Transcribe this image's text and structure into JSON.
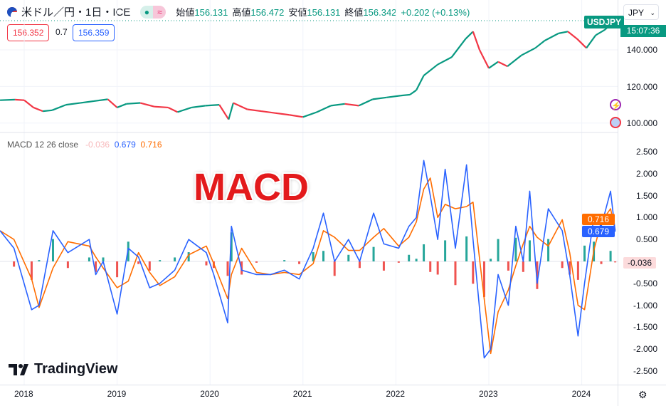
{
  "header": {
    "symbol": "米ドル／円・1日・ICE",
    "status_icons": [
      "market-open-dot",
      "delayed-data-icon"
    ],
    "open_label": "始値",
    "open": "156.131",
    "high_label": "高値",
    "high": "156.472",
    "low_label": "安値",
    "low": "156.131",
    "close_label": "終値",
    "close": "156.342",
    "change": "+0.202 (+0.13%)"
  },
  "quote": {
    "bid": "156.352",
    "spread": "0.7",
    "ask": "156.359"
  },
  "price_axis": {
    "currency": "JPY",
    "ticks": [
      "140.000",
      "120.000",
      "100.000"
    ],
    "symbol_badge": "USDJPY",
    "countdown": "15:07:36"
  },
  "macd_legend": {
    "name": "MACD 12 26 close",
    "hist": "-0.036",
    "macd": "0.679",
    "signal": "0.716"
  },
  "macd_axis": {
    "ticks": [
      "2.500",
      "2.000",
      "1.500",
      "1.000",
      "0.500",
      "-0.500",
      "-1.000",
      "-1.500",
      "-2.000",
      "-2.500"
    ],
    "badge_signal": "0.716",
    "badge_macd": "0.679",
    "badge_hist": "-0.036"
  },
  "time_axis": [
    "2018",
    "2019",
    "2020",
    "2021",
    "2022",
    "2023",
    "2024"
  ],
  "overlay_title": "MACD",
  "logo": "TradingView",
  "colors": {
    "up": "#089981",
    "down": "#f23645",
    "macd": "#2962ff",
    "signal": "#ff6d00",
    "hist_up": "#26a69a",
    "hist_down": "#ef5350"
  },
  "chart_data": [
    {
      "type": "line",
      "title": "USDJPY",
      "x_unit": "year",
      "x": [
        2017.74,
        2017.9,
        2018.0,
        2018.1,
        2018.2,
        2018.3,
        2018.45,
        2018.6,
        2018.75,
        2018.9,
        2019.0,
        2019.1,
        2019.25,
        2019.4,
        2019.55,
        2019.65,
        2019.8,
        2019.95,
        2020.1,
        2020.2,
        2020.25,
        2020.4,
        2020.55,
        2020.7,
        2020.85,
        2021.0,
        2021.15,
        2021.3,
        2021.45,
        2021.6,
        2021.75,
        2021.9,
        2022.05,
        2022.15,
        2022.22,
        2022.3,
        2022.45,
        2022.6,
        2022.75,
        2022.83,
        2022.9,
        2023.0,
        2023.1,
        2023.2,
        2023.35,
        2023.5,
        2023.6,
        2023.75,
        2023.85,
        2023.95,
        2024.05,
        2024.15,
        2024.25,
        2024.36
      ],
      "values": [
        112.5,
        112.8,
        112.5,
        108.5,
        106.5,
        107,
        110,
        111,
        112,
        113,
        108.5,
        110.5,
        111,
        109,
        108.5,
        106,
        108.5,
        109.5,
        110,
        102,
        111,
        107.5,
        106.5,
        105.5,
        104.5,
        103.3,
        106,
        109.5,
        110.5,
        109.5,
        113,
        114,
        115,
        115.5,
        118,
        126,
        132,
        136,
        146,
        150,
        140,
        130,
        133.5,
        131,
        137,
        141,
        145,
        149,
        150,
        146,
        141,
        148,
        151,
        156.3
      ],
      "ylim": [
        98,
        158
      ]
    },
    {
      "type": "line",
      "title": "MACD 12 26 close",
      "x_unit": "year",
      "x": [
        2017.74,
        2017.89,
        2018.08,
        2018.16,
        2018.31,
        2018.47,
        2018.7,
        2018.77,
        2018.85,
        2019.0,
        2019.12,
        2019.23,
        2019.35,
        2019.46,
        2019.62,
        2019.77,
        2019.96,
        2020.04,
        2020.19,
        2020.23,
        2020.34,
        2020.5,
        2020.65,
        2020.8,
        2020.96,
        2021.11,
        2021.22,
        2021.34,
        2021.49,
        2021.61,
        2021.76,
        2021.87,
        2022.03,
        2022.14,
        2022.22,
        2022.3,
        2022.37,
        2022.45,
        2022.53,
        2022.64,
        2022.76,
        2022.83,
        2022.95,
        2023.02,
        2023.1,
        2023.21,
        2023.29,
        2023.37,
        2023.44,
        2023.52,
        2023.64,
        2023.79,
        2023.87,
        2023.96,
        2024.03,
        2024.13,
        2024.21,
        2024.31,
        2024.36
      ],
      "series": [
        {
          "name": "MACD",
          "values": [
            0.7,
            0.3,
            -1.1,
            -1.0,
            0.7,
            0.2,
            0.5,
            -0.3,
            0.0,
            -1.2,
            0.3,
            0.1,
            -0.6,
            -0.5,
            -0.2,
            0.5,
            0.2,
            -0.3,
            -1.4,
            0.8,
            -0.2,
            -0.3,
            -0.3,
            -0.2,
            -0.4,
            0.3,
            1.1,
            0.0,
            0.5,
            0.0,
            1.1,
            0.4,
            0.3,
            0.8,
            1.0,
            2.3,
            1.5,
            0.5,
            2.1,
            0.3,
            2.2,
            0.5,
            -2.2,
            -2.0,
            -0.3,
            -1.0,
            0.8,
            0.0,
            1.6,
            -0.5,
            1.2,
            0.7,
            -0.3,
            -1.7,
            -0.5,
            1.0,
            0.8,
            1.6,
            0.679
          ]
        },
        {
          "name": "Signal",
          "values": [
            0.7,
            0.5,
            -0.4,
            -1.05,
            -0.15,
            0.45,
            0.35,
            0.1,
            -0.15,
            -0.6,
            -0.45,
            0.2,
            -0.25,
            -0.55,
            -0.35,
            0.15,
            0.35,
            -0.05,
            -0.85,
            -0.3,
            0.3,
            -0.25,
            -0.3,
            -0.25,
            -0.3,
            -0.05,
            0.7,
            0.55,
            0.25,
            0.25,
            0.55,
            0.75,
            0.35,
            0.55,
            0.9,
            1.65,
            1.9,
            1.0,
            1.3,
            1.2,
            1.25,
            1.35,
            -0.85,
            -2.1,
            -1.15,
            -0.65,
            -0.1,
            0.4,
            0.8,
            0.55,
            0.35,
            0.95,
            0.2,
            -1.0,
            -1.1,
            0.25,
            0.9,
            1.2,
            0.716
          ]
        }
      ],
      "ylim": [
        -2.5,
        2.5
      ]
    }
  ]
}
